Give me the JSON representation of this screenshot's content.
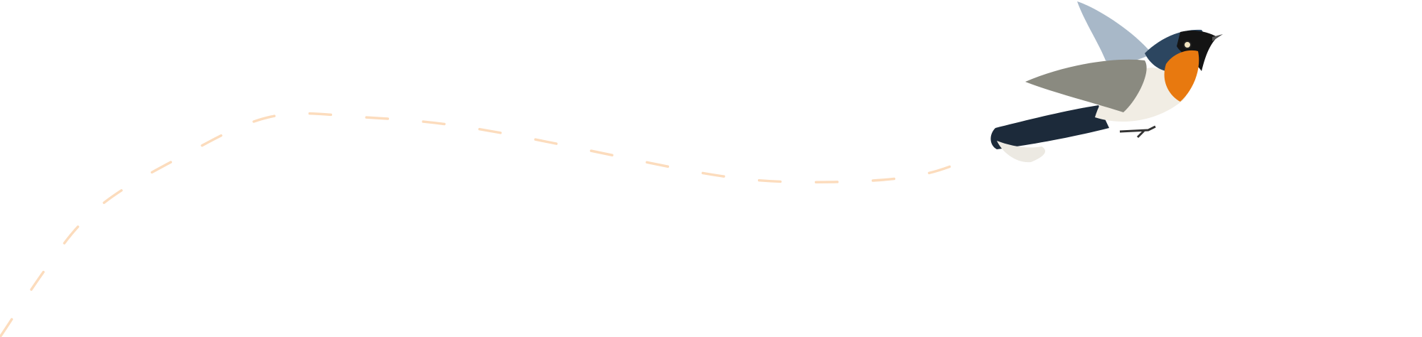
{
  "illustration": {
    "subject": "bird-icon",
    "trail_color": "#fcdcbd",
    "colors": {
      "throat": "#e8790f",
      "head": "#2c4660",
      "mask": "#141414",
      "wing": "#8a8a80",
      "wing_highlight": "#a8b8c8",
      "belly": "#f1ede4",
      "tail": "#1c2a3a",
      "tail_tip": "#ece9e2"
    }
  }
}
